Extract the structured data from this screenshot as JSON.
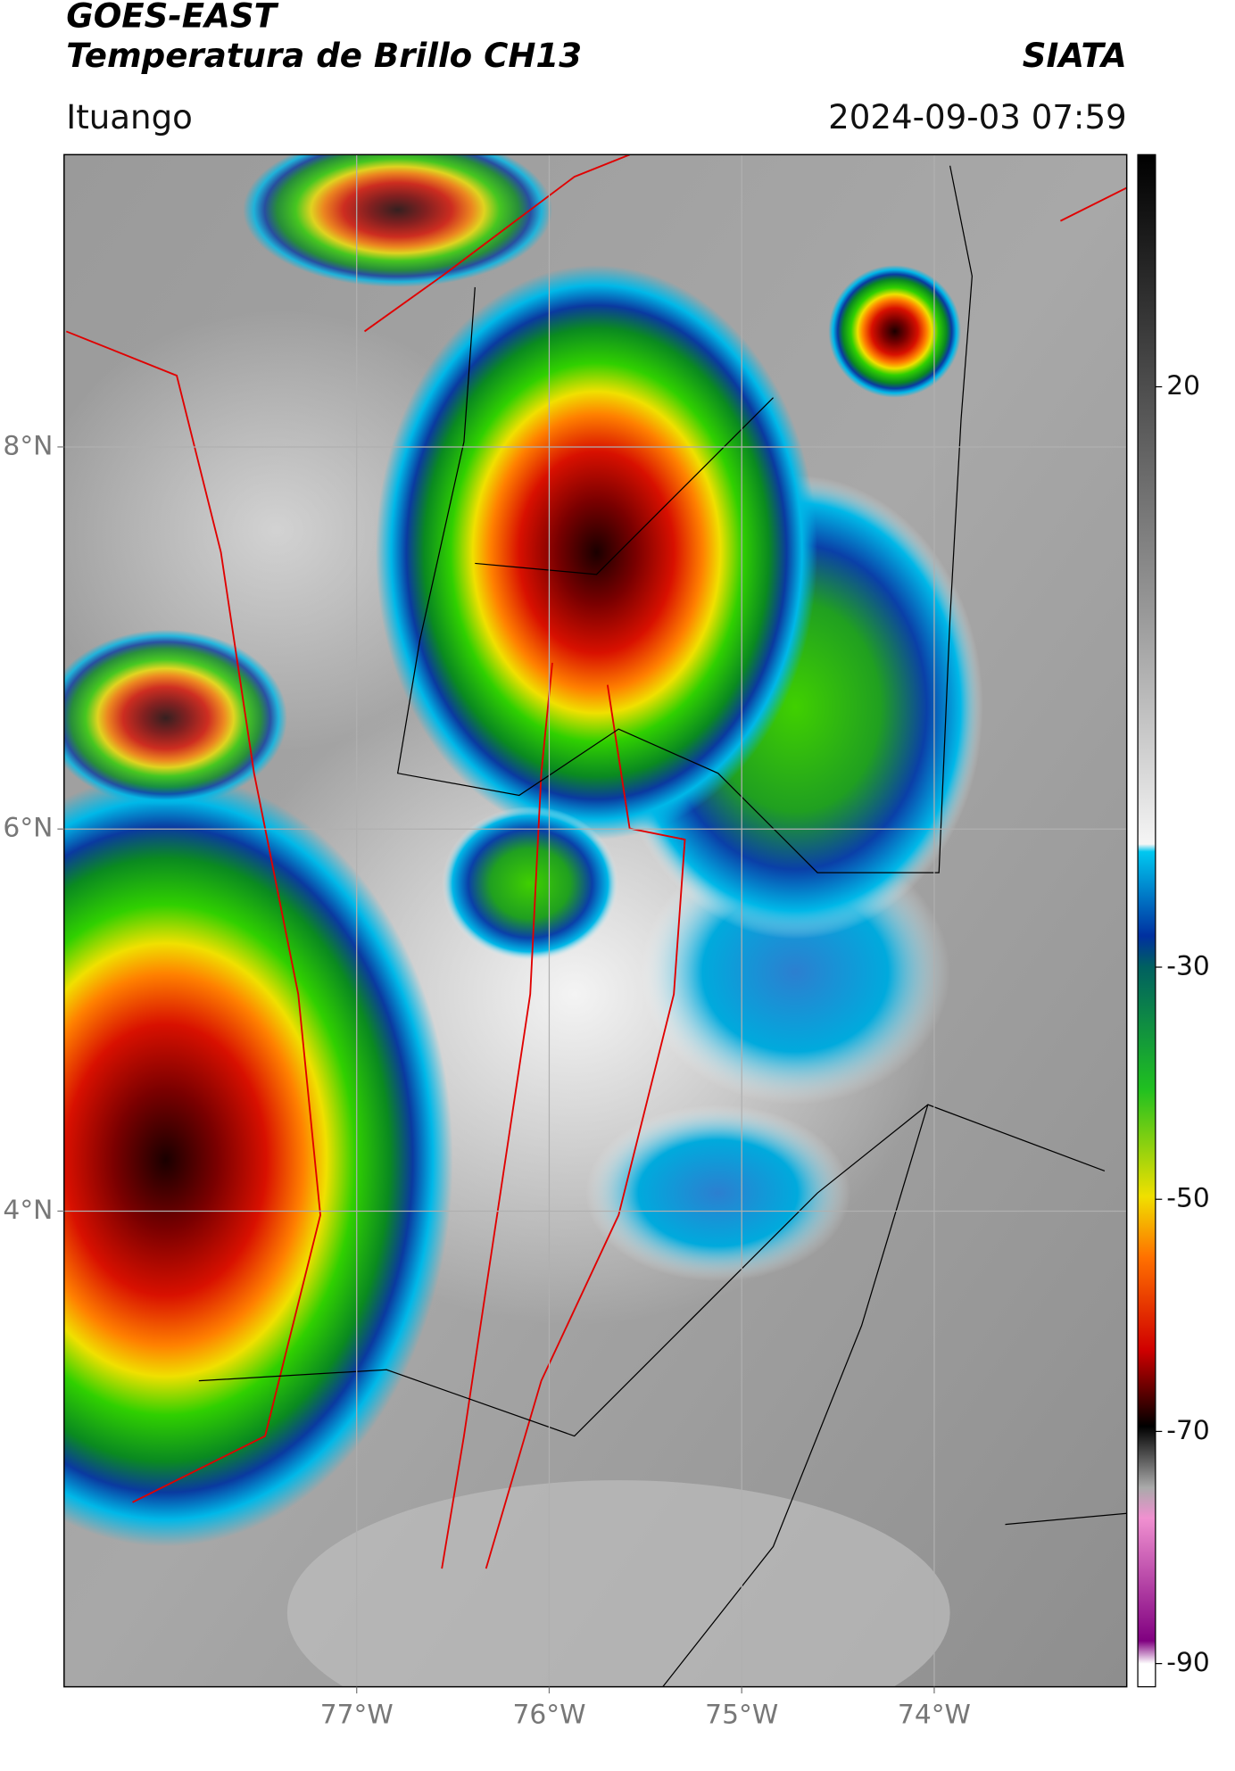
{
  "header": {
    "title": "GOES-EAST",
    "subtitle": "Temperatura de Brillo CH13",
    "source": "SIATA",
    "place": "Ituango",
    "datetime": "2024-09-03 07:59"
  },
  "map": {
    "xlim": [
      -78.52,
      -73.0
    ],
    "ylim": [
      1.51,
      9.53
    ],
    "xticks": [
      {
        "value": -77,
        "label": "77°W"
      },
      {
        "value": -76,
        "label": "76°W"
      },
      {
        "value": -75,
        "label": "75°W"
      },
      {
        "value": -74,
        "label": "74°W"
      }
    ],
    "yticks": [
      {
        "value": 8,
        "label": "8°N"
      },
      {
        "value": 6,
        "label": "6°N"
      },
      {
        "value": 4,
        "label": "4°N"
      }
    ]
  },
  "colorbar": {
    "clim": [
      -92,
      40
    ],
    "ticks": [
      20,
      -30,
      -50,
      -70,
      -90
    ]
  }
}
